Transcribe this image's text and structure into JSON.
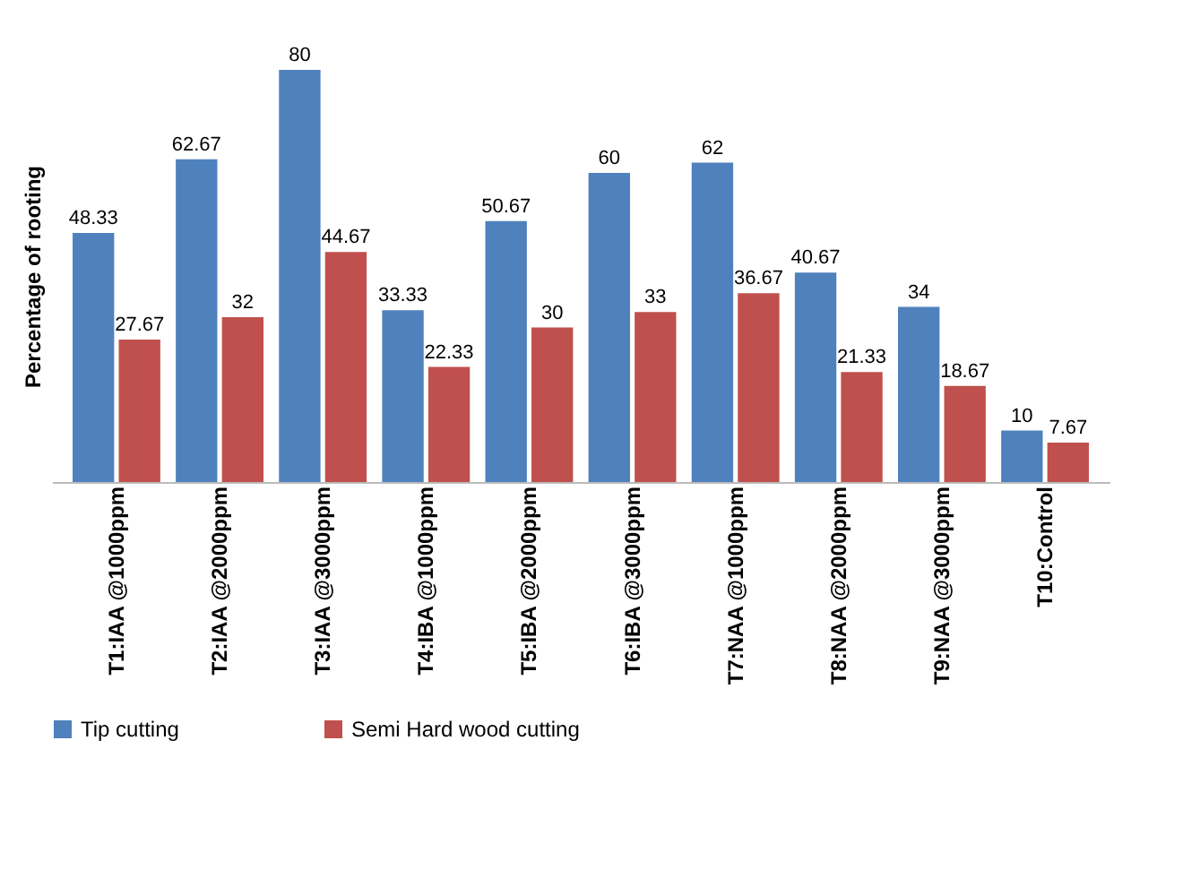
{
  "chart_data": {
    "type": "bar",
    "ylabel": "Percentage of rooting",
    "categories": [
      "T1:IAA @1000ppm",
      "T2:IAA @2000ppm",
      "T3:IAA @3000ppm",
      "T4:IBA @1000ppm",
      "T5:IBA @2000ppm",
      "T6:IBA @3000ppm",
      "T7:NAA @1000ppm",
      "T8:NAA @2000ppm",
      "T9:NAA @3000ppm",
      "T10:Control"
    ],
    "series": [
      {
        "name": "Tip cutting",
        "color": "#4f81bd",
        "values": [
          48.33,
          62.67,
          80,
          33.33,
          50.67,
          60,
          62,
          40.67,
          34,
          10
        ]
      },
      {
        "name": "Semi Hard wood cutting",
        "color": "#c0504d",
        "values": [
          27.67,
          32,
          44.67,
          22.33,
          30,
          33,
          36.67,
          21.33,
          18.67,
          7.67
        ]
      }
    ],
    "data_labels": true,
    "legend": "bottom"
  }
}
